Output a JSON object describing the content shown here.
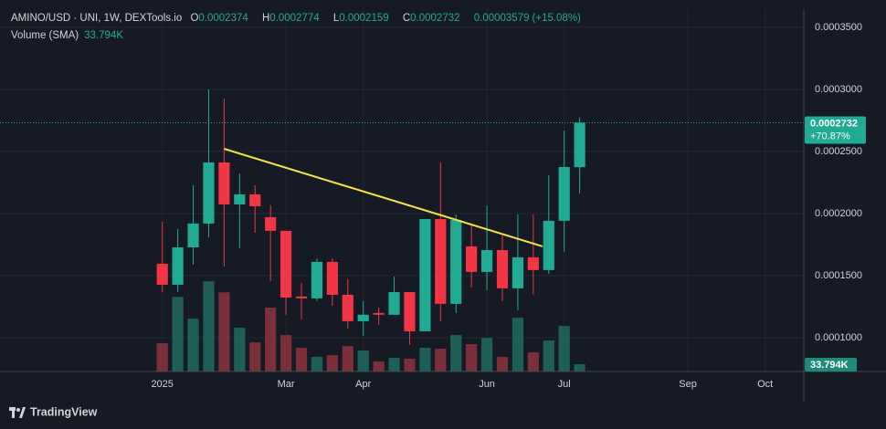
{
  "chart_data": {
    "type": "candlestick",
    "title": "AMINO/USD · UNI, 1W, DEXTools.io",
    "ohlc_keys": [
      "O",
      "H",
      "L",
      "C"
    ],
    "change": "0.00003579",
    "change_percent": "(+15.08%)",
    "volume_title": "Volume (SMA)",
    "last_volume_label": "33.794K",
    "change_label": "+70.87%",
    "branding": "TradingView",
    "x": [
      0,
      1,
      2,
      3,
      4,
      5,
      6,
      7,
      8,
      9,
      10,
      11,
      12,
      13,
      14,
      15,
      16,
      17,
      18,
      19,
      20,
      21,
      22,
      23,
      24,
      25,
      26,
      27
    ],
    "open": [
      0.0001596,
      0.0001427,
      0.0001728,
      0.000192,
      0.0002412,
      0.0002074,
      0.0002155,
      0.0001971,
      0.0001861,
      0.0001332,
      0.0001317,
      0.0001611,
      0.0001346,
      0.0001133,
      0.0001199,
      0.0001185,
      0.0001368,
      0.0001052,
      0.0001956,
      0.0001273,
      0.0001736,
      0.000153,
      0.0001706,
      0.0001398,
      0.0001648,
      0.0001545,
      0.0001942,
      0.0002374
    ],
    "high": [
      0.0001934,
      0.0001875,
      0.0002228,
      0.0003,
      0.0002926,
      0.0002324,
      0.0002228,
      0.0002067,
      0.0001861,
      0.0001442,
      0.000164,
      0.000164,
      0.0001471,
      0.0001295,
      0.0001243,
      0.0001493,
      0.0001368,
      0.0001956,
      0.0002412,
      0.0001993,
      0.000192,
      0.0002067,
      0.0001824,
      0.0001993,
      0.0001993,
      0.0002309,
      0.0002669,
      0.0002774
    ],
    "low": [
      0.0001368,
      0.0001368,
      0.0001589,
      0.0001809,
      0.0001574,
      0.0001721,
      0.0001846,
      0.0001456,
      0.0001185,
      0.0001148,
      0.0001295,
      0.0001258,
      0.0001074,
      0.0001015,
      0.0001104,
      0.0001185,
      9.42e-05,
      0.0001052,
      0.0001133,
      0.0001199,
      0.0001405,
      0.0001383,
      0.0001295,
      0.0001221,
      0.0001346,
      0.0001515,
      0.0001692,
      0.0002159
    ],
    "close": [
      0.0001427,
      0.0001728,
      0.000192,
      0.0002412,
      0.0002074,
      0.0002155,
      0.0002059,
      0.0001861,
      0.0001324,
      0.0001317,
      0.0001611,
      0.0001346,
      0.0001133,
      0.0001185,
      0.0001185,
      0.0001368,
      0.0001052,
      0.0001956,
      0.0001273,
      0.0001949,
      0.000153,
      0.0001706,
      0.0001398,
      0.0001648,
      0.0001545,
      0.0001942,
      0.0002375,
      0.0002732
    ],
    "volume": [
      131000,
      346000,
      245000,
      418000,
      367000,
      203000,
      135000,
      296000,
      169000,
      110000,
      68000,
      76000,
      118000,
      97000,
      46000,
      63000,
      59000,
      110000,
      106000,
      169000,
      127000,
      156000,
      68000,
      249000,
      89000,
      144000,
      211000,
      33794
    ],
    "up_color": "#22ab94",
    "down_color": "#f23645",
    "volume_up_color": "#1f5f58",
    "volume_down_color": "#7b2f3b",
    "trendline": {
      "x": [
        4,
        24.6
      ],
      "y": [
        0.0002522,
        0.0001736
      ],
      "color": "#f5e342"
    },
    "xlim": [
      -10.5,
      41.5
    ],
    "xticks": [
      {
        "value": 0,
        "label": "2025"
      },
      {
        "value": 8,
        "label": "Mar"
      },
      {
        "value": 13,
        "label": "Apr"
      },
      {
        "value": 21,
        "label": "Jun"
      },
      {
        "value": 26,
        "label": "Jul"
      },
      {
        "value": 34,
        "label": "Sep"
      },
      {
        "value": 39,
        "label": "Oct"
      }
    ],
    "ylim": [
      7.28e-05,
      0.0003647
    ],
    "yticks": [
      {
        "value": 0.0001,
        "label": "0.0001000"
      },
      {
        "value": 0.00015,
        "label": "0.0001500"
      },
      {
        "value": 0.0002,
        "label": "0.0002000"
      },
      {
        "value": 0.00025,
        "label": "0.0002500"
      },
      {
        "value": 0.0003,
        "label": "0.0003000"
      },
      {
        "value": 0.00035,
        "label": "0.0003500"
      }
    ],
    "volume_ylim": [
      0,
      1680000
    ],
    "grid": true
  }
}
